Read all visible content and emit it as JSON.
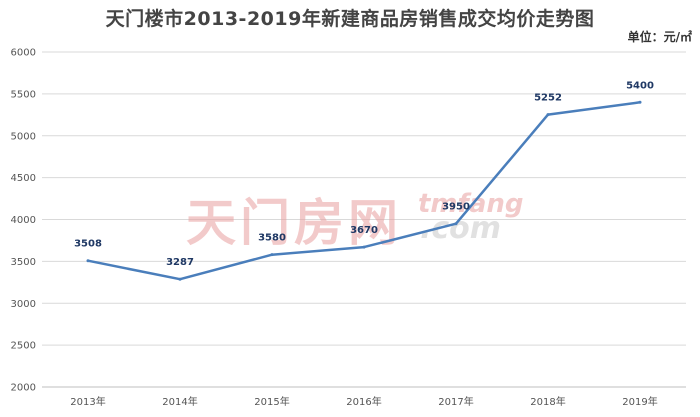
{
  "chart_data": {
    "type": "line",
    "title": "天门楼市2013-2019年新建商品房销售成交均价走势图",
    "unit_label": "单位：元/㎡",
    "categories": [
      "2013年",
      "2014年",
      "2015年",
      "2016年",
      "2017年",
      "2018年",
      "2019年"
    ],
    "series": [
      {
        "values": [
          3508,
          3287,
          3580,
          3670,
          3950,
          5252,
          5400
        ]
      }
    ],
    "data_labels": [
      "3508",
      "3287",
      "3580",
      "3670",
      "3950",
      "5252",
      "5400"
    ],
    "ylim": [
      2000,
      6000
    ],
    "yticks": [
      "2000",
      "2500",
      "3000",
      "3500",
      "4000",
      "4500",
      "5000",
      "5500",
      "6000"
    ],
    "grid": true,
    "line_color": "#4a7ebb",
    "label_color": "#1f3864"
  },
  "watermark": {
    "brand": "天门房网",
    "latin": "tmfang",
    "domain": ".com"
  }
}
